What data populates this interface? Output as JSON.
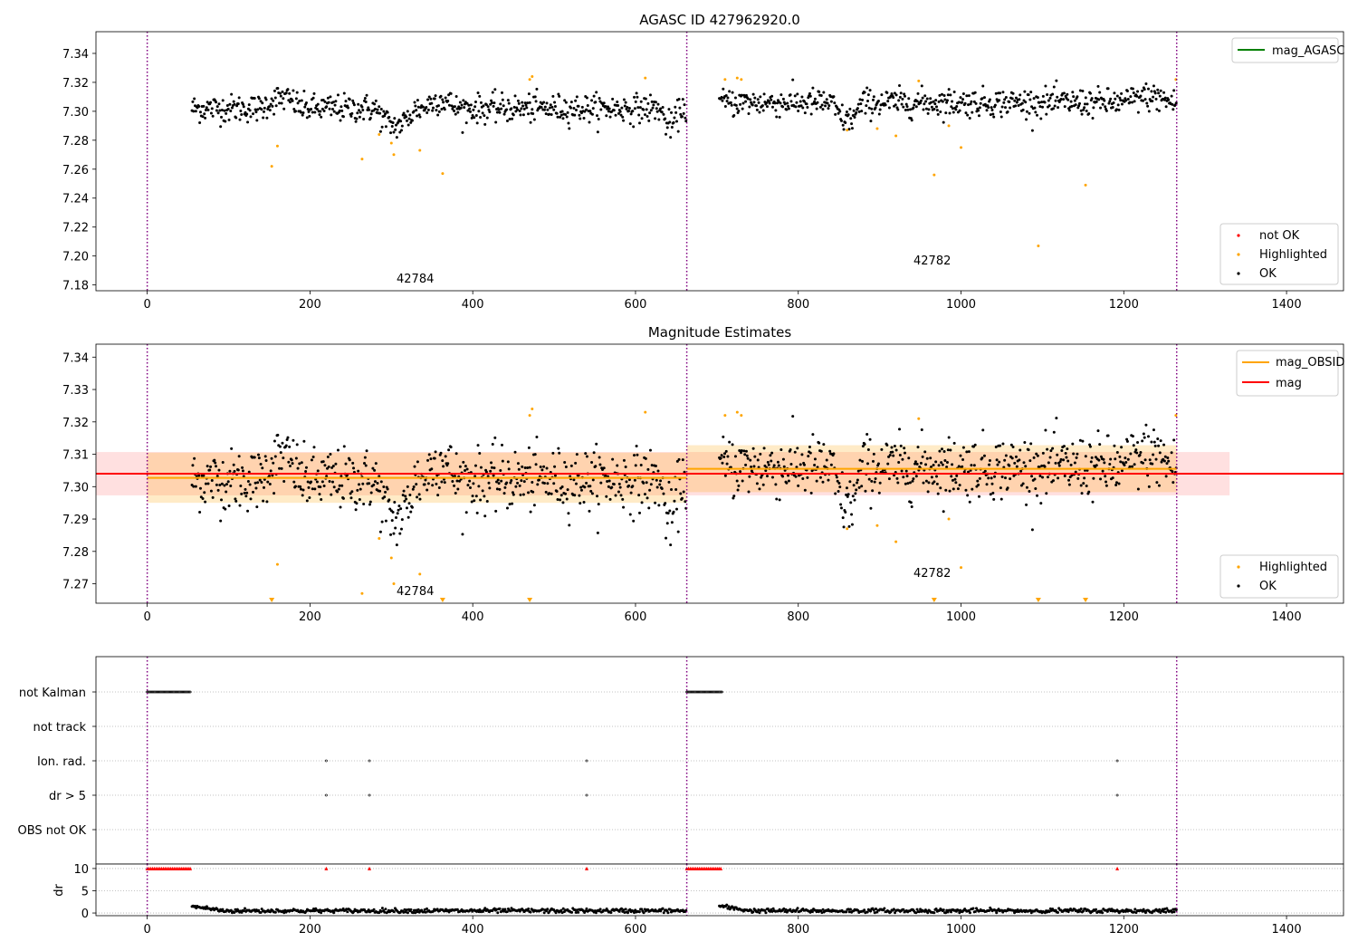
{
  "chart_data": [
    {
      "type": "scatter",
      "title": "AGASC ID 427962920.0",
      "xlim": [
        -63,
        1470
      ],
      "ylim": [
        7.176,
        7.355
      ],
      "xticks": [
        0,
        200,
        400,
        600,
        800,
        1000,
        1200,
        1400
      ],
      "yticks": [
        7.18,
        7.2,
        7.22,
        7.24,
        7.26,
        7.28,
        7.3,
        7.32,
        7.34
      ],
      "vlines": [
        0,
        663,
        1265
      ],
      "obsid_labels": [
        {
          "text": "42784",
          "x": 330,
          "y": 7.185
        },
        {
          "text": "42782",
          "x": 963,
          "y": 7.197
        }
      ],
      "legend_lines": [
        {
          "name": "mag_AGASC",
          "color": "#008000"
        }
      ],
      "legend_points": [
        {
          "name": "not OK",
          "color": "#ff0000"
        },
        {
          "name": "Highlighted",
          "color": "#ffa500"
        },
        {
          "name": "OK",
          "color": "#000000"
        }
      ],
      "highlighted": [
        [
          153,
          7.262
        ],
        [
          160,
          7.276
        ],
        [
          264,
          7.267
        ],
        [
          285,
          7.284
        ],
        [
          300,
          7.278
        ],
        [
          303,
          7.27
        ],
        [
          335,
          7.273
        ],
        [
          363,
          7.257
        ],
        [
          470,
          7.322
        ],
        [
          473,
          7.324
        ],
        [
          612,
          7.323
        ],
        [
          710,
          7.322
        ],
        [
          725,
          7.323
        ],
        [
          730,
          7.322
        ],
        [
          860,
          7.287
        ],
        [
          897,
          7.288
        ],
        [
          920,
          7.283
        ],
        [
          948,
          7.321
        ],
        [
          967,
          7.256
        ],
        [
          985,
          7.29
        ],
        [
          1000,
          7.275
        ],
        [
          1095,
          7.207
        ],
        [
          1153,
          7.249
        ],
        [
          1264,
          7.322
        ]
      ],
      "ok_segments": [
        {
          "x": [
            55,
            663
          ],
          "mid": 7.302,
          "spread": 0.006,
          "dips": [
            [
              140,
              190,
              0.007
            ],
            [
              280,
              330,
              -0.012
            ],
            [
              340,
              380,
              0.006
            ],
            [
              630,
              655,
              -0.012
            ]
          ]
        },
        {
          "x": [
            703,
            1265
          ],
          "mid": 7.306,
          "spread": 0.006,
          "dips": [
            [
              840,
              880,
              -0.012
            ],
            [
              1200,
              1260,
              0.004
            ]
          ]
        }
      ]
    },
    {
      "type": "scatter",
      "title": "Magnitude Estimates",
      "xlim": [
        -63,
        1470
      ],
      "ylim": [
        7.264,
        7.344
      ],
      "xticks": [
        0,
        200,
        400,
        600,
        800,
        1000,
        1200,
        1400
      ],
      "yticks": [
        7.27,
        7.28,
        7.29,
        7.3,
        7.31,
        7.32,
        7.33,
        7.34
      ],
      "vlines": [
        0,
        663,
        1265
      ],
      "obsid_labels": [
        {
          "text": "42784",
          "x": 330,
          "y": 7.267
        },
        {
          "text": "42782",
          "x": 963,
          "y": 7.273
        }
      ],
      "legend_lines": [
        {
          "name": "mag_OBSID",
          "color": "#ffa500"
        },
        {
          "name": "mag",
          "color": "#ff0000"
        }
      ],
      "legend_points": [
        {
          "name": "Highlighted",
          "color": "#ffa500"
        },
        {
          "name": "OK",
          "color": "#000000"
        }
      ],
      "mag": {
        "value": 7.304,
        "band": [
          7.2973,
          7.3107
        ],
        "x": [
          -63,
          1330
        ]
      },
      "mag_obsid": [
        {
          "x": [
            0,
            663
          ],
          "value": 7.3027,
          "band": [
            7.295,
            7.3105
          ]
        },
        {
          "x": [
            663,
            1265
          ],
          "value": 7.3055,
          "band": [
            7.2983,
            7.3128
          ]
        }
      ],
      "lower_limit_markers": [
        153,
        363,
        470,
        967,
        1095,
        1153
      ]
    },
    {
      "type": "scatter",
      "categories": [
        "not Kalman",
        "not track",
        "Ion. rad.",
        "dr > 5",
        "OBS not OK"
      ],
      "xlim": [
        -63,
        1470
      ],
      "flags": {
        "not Kalman": [
          [
            0,
            54
          ],
          [
            663,
            707
          ]
        ],
        "Ion. rad.": [
          220,
          273,
          540,
          1192
        ],
        "dr > 5": [
          220,
          273,
          540,
          1192
        ]
      },
      "vlines": [
        0,
        663,
        1265
      ]
    },
    {
      "type": "scatter",
      "ylabel": "dr",
      "xlim": [
        -63,
        1470
      ],
      "ylim": [
        -0.6,
        11
      ],
      "xticks": [
        0,
        200,
        400,
        600,
        800,
        1000,
        1200,
        1400
      ],
      "yticks": [
        0,
        5,
        10
      ],
      "clipped_at": 10,
      "clipped_x": [
        [
          0,
          54
        ],
        [
          663,
          707
        ],
        220,
        273,
        540,
        1192
      ],
      "vlines": [
        0,
        663,
        1265
      ]
    }
  ],
  "tick_labels": {
    "x": [
      "0",
      "200",
      "400",
      "600",
      "800",
      "1000",
      "1200",
      "1400"
    ],
    "y1": [
      "7.18",
      "7.20",
      "7.22",
      "7.24",
      "7.26",
      "7.28",
      "7.30",
      "7.32",
      "7.34"
    ],
    "y2": [
      "7.27",
      "7.28",
      "7.29",
      "7.30",
      "7.31",
      "7.32",
      "7.33",
      "7.34"
    ],
    "y4": [
      "0",
      "5",
      "10"
    ]
  }
}
